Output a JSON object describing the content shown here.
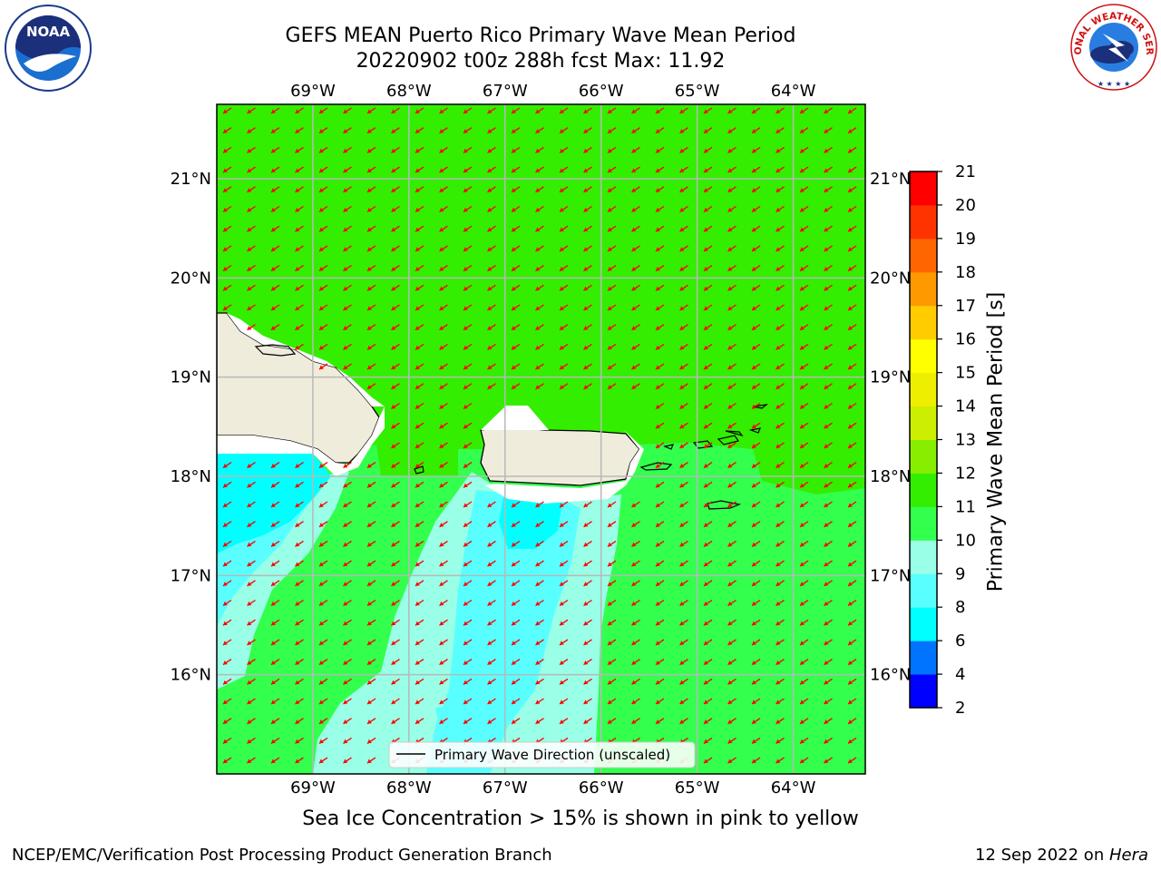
{
  "title": {
    "line1": "GEFS MEAN Puerto Rico Primary Wave Mean Period",
    "line2": "20220902 t00z 288h fcst   Max: 11.92"
  },
  "logos": {
    "noaa": {
      "text": "NOAA",
      "icon": "noaa-logo-icon"
    },
    "nws": {
      "text": "NATIONAL WEATHER SERVICE",
      "icon": "nws-logo-icon"
    }
  },
  "chart_data": {
    "type": "heatmap",
    "projection": "geographic",
    "lon_range": [
      -70.0,
      -63.25
    ],
    "lat_range": [
      15.0,
      21.75
    ],
    "lon_ticks": [
      "69°W",
      "68°W",
      "67°W",
      "66°W",
      "65°W",
      "64°W"
    ],
    "lat_ticks": [
      "16°N",
      "17°N",
      "18°N",
      "19°N",
      "20°N",
      "21°N"
    ],
    "grid": true,
    "field": "Primary Wave Mean Period",
    "max_value": 11.92,
    "vector_field": "Primary Wave Direction (unscaled)",
    "vector_direction": "towards south-west",
    "legend": {
      "label": "Primary Wave Direction (unscaled)",
      "placement": "lower-center"
    },
    "colorbar": {
      "label": "Primary Wave Mean Period [s]",
      "ticks": [
        "2",
        "4",
        "6",
        "8",
        "9",
        "10",
        "11",
        "12",
        "13",
        "14",
        "15",
        "16",
        "17",
        "18",
        "19",
        "20",
        "21"
      ],
      "colors": [
        "#0000ff",
        "#0073ff",
        "#00ffff",
        "#59ffff",
        "#99ffe6",
        "#33ff4d",
        "#33ee00",
        "#88ee00",
        "#ccee00",
        "#eeee00",
        "#ffff00",
        "#ffcc00",
        "#ff9900",
        "#ff6600",
        "#ff3300",
        "#ff0000"
      ]
    }
  },
  "note": "Sea Ice Concentration > 15% is shown in pink to yellow",
  "footer": {
    "left": "NCEP/EMC/Verification Post Processing Product Generation Branch",
    "right_date": "12 Sep 2022 on ",
    "right_host": "Hera"
  }
}
